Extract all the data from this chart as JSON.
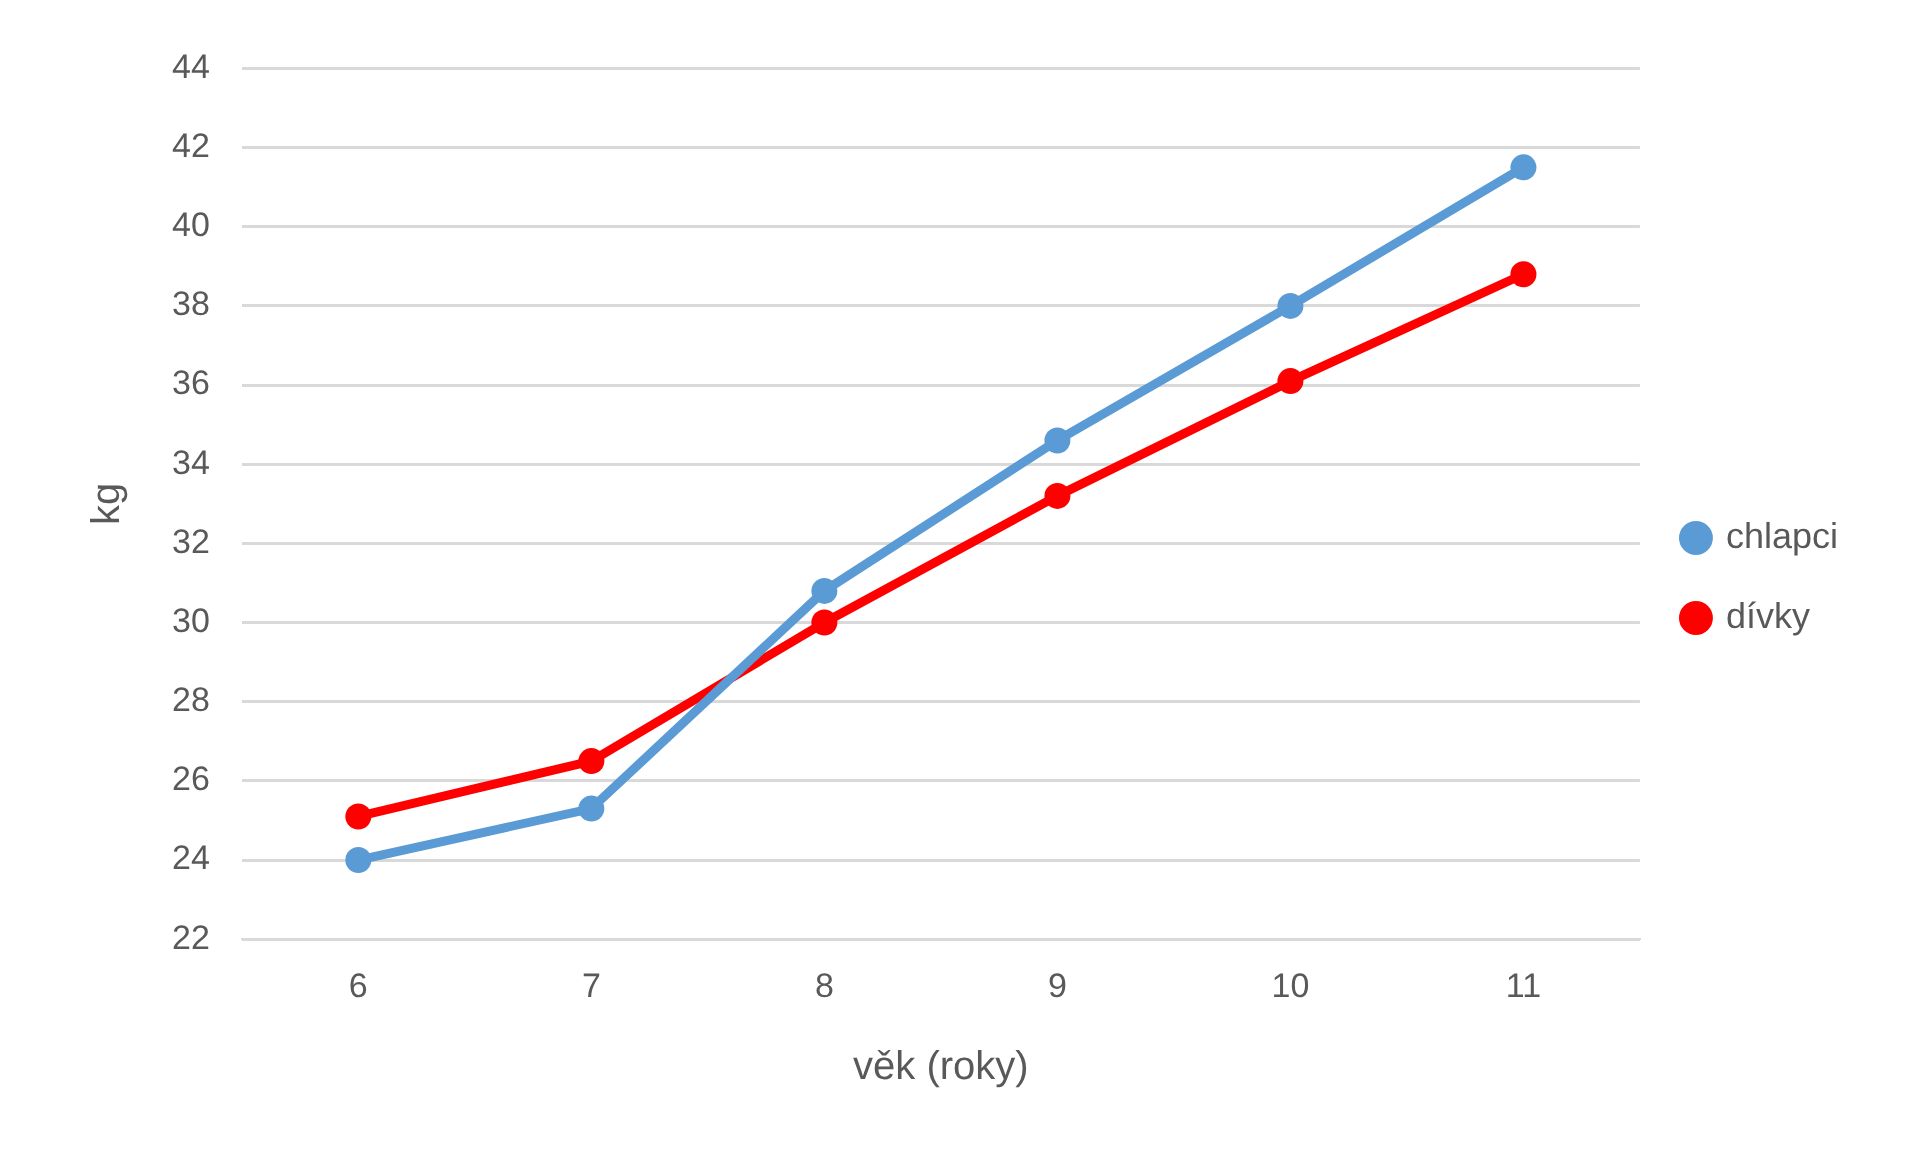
{
  "chart_data": {
    "type": "line",
    "xlabel": "věk (roky)",
    "ylabel": "kg",
    "categories": [
      "6",
      "7",
      "8",
      "9",
      "10",
      "11"
    ],
    "series": [
      {
        "name": "chlapci",
        "color": "#5b9bd5",
        "values": [
          24,
          25.3,
          30.8,
          34.6,
          38,
          41.5
        ]
      },
      {
        "name": "dívky",
        "color": "#ff0000",
        "values": [
          25.1,
          26.5,
          30,
          33.2,
          36.1,
          38.8
        ]
      }
    ],
    "ylim": [
      22,
      44
    ],
    "yticks": [
      22,
      24,
      26,
      28,
      30,
      32,
      34,
      36,
      38,
      40,
      42,
      44
    ],
    "grid": "y",
    "legend": "right",
    "marker": "circle",
    "line_style": "solid"
  }
}
